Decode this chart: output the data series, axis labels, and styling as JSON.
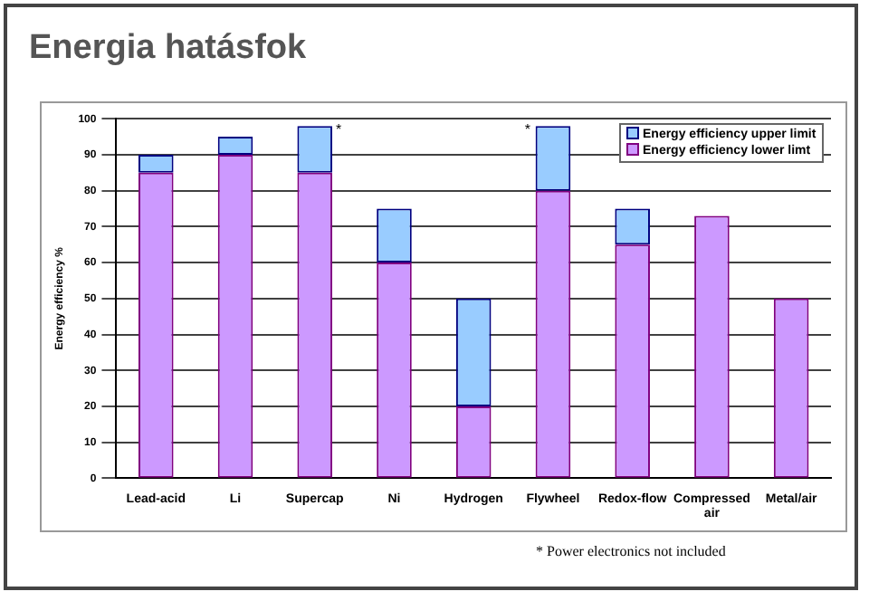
{
  "chart_data": {
    "type": "bar",
    "title": "Energia hatásfok",
    "ylabel": "Energy efficiency %",
    "stacked": true,
    "categories": [
      "Lead-acid",
      "Li",
      "Supercap",
      "Ni",
      "Hydrogen",
      "Flywheel",
      "Redox-flow",
      "Compressed air",
      "Metal/air"
    ],
    "series": [
      {
        "name": "Energy efficiency lower limt",
        "color": "#cc99ff",
        "values": [
          85,
          90,
          85,
          60,
          20,
          80,
          65,
          73,
          50
        ]
      },
      {
        "name": "Energy efficiency upper limit",
        "color": "#99ccff",
        "values": [
          5,
          5,
          13,
          15,
          30,
          18,
          10,
          null,
          null
        ]
      }
    ],
    "ylim": [
      0,
      100
    ],
    "yticks": [
      0,
      10,
      20,
      30,
      40,
      50,
      60,
      70,
      80,
      90,
      100
    ],
    "grid": "y",
    "legend": "top right",
    "annotations": [
      {
        "text": "*",
        "x": "Supercap",
        "y": 98
      },
      {
        "text": "*",
        "x": "Flywheel",
        "y": 98
      },
      "* Power electronics not included"
    ]
  }
}
